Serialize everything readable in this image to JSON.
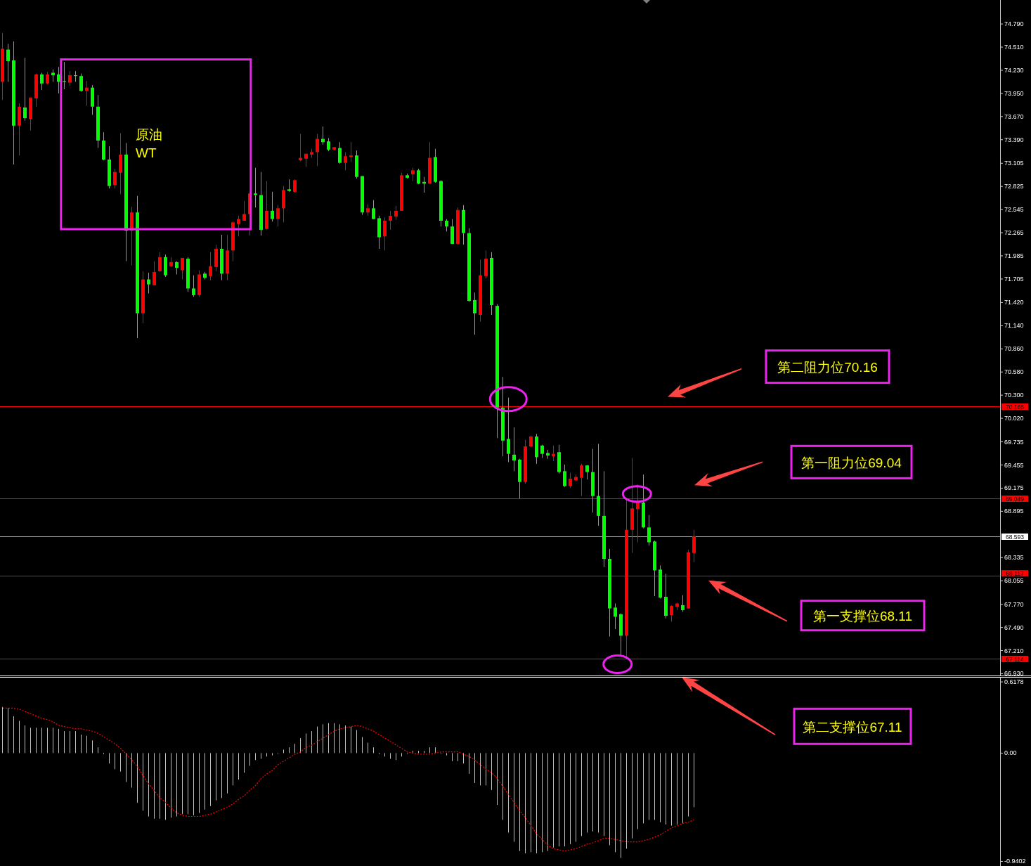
{
  "chart_data": [
    {
      "type": "candlestick",
      "categories": [
        null,
        null,
        null,
        null,
        null,
        null,
        null,
        null,
        null,
        null,
        null,
        null,
        null,
        null,
        null,
        null,
        null,
        null,
        null,
        null,
        null,
        null,
        null,
        null,
        null,
        null,
        null,
        null,
        null,
        null,
        null,
        null,
        null,
        null,
        null,
        null,
        null,
        null,
        null,
        null,
        null,
        null,
        null,
        null,
        null,
        null,
        null,
        null,
        null,
        null,
        null,
        null,
        null,
        null,
        null,
        null,
        null,
        null,
        null,
        null,
        null,
        null,
        null,
        null,
        null,
        null,
        null,
        null,
        null,
        null,
        null,
        null,
        null,
        null,
        null,
        null,
        null,
        null,
        null,
        null,
        null,
        null,
        null,
        null,
        null,
        null,
        null,
        null,
        null,
        null,
        null,
        null,
        null,
        null,
        null,
        null,
        null,
        null,
        null,
        null,
        null,
        null,
        null,
        null,
        null,
        null,
        null,
        null,
        null,
        null,
        null,
        null,
        null,
        null,
        null,
        null,
        null,
        null,
        null,
        null,
        null,
        null,
        null,
        null,
        null,
        null,
        null,
        null,
        null,
        null,
        null,
        null,
        null,
        null,
        null,
        null,
        null,
        null,
        null,
        null,
        null,
        null,
        null,
        null,
        null,
        null,
        null,
        null,
        null,
        null,
        null,
        null,
        null,
        null,
        null,
        null,
        null,
        null,
        null,
        null,
        null,
        null,
        null,
        null,
        null,
        null,
        null,
        null,
        null,
        null,
        null,
        null,
        null,
        null,
        null,
        null,
        null,
        null
      ],
      "ohlc": [
        [
          74.09,
          74.68,
          73.87,
          74.49
        ],
        [
          74.48,
          74.55,
          74.09,
          74.34
        ],
        [
          74.35,
          74.58,
          73.09,
          73.56
        ],
        [
          73.56,
          73.83,
          73.2,
          73.79
        ],
        [
          73.78,
          74.38,
          73.62,
          73.65
        ],
        [
          73.64,
          73.9,
          73.5,
          73.9
        ],
        [
          73.89,
          74.19,
          73.79,
          74.18
        ],
        [
          74.18,
          74.2,
          73.99,
          74.07
        ],
        [
          74.07,
          74.21,
          74.06,
          74.18
        ],
        [
          74.2,
          74.24,
          74.09,
          74.17
        ],
        [
          74.18,
          74.27,
          73.95,
          74.09
        ],
        [
          74.1,
          74.33,
          74.0,
          74.09
        ],
        [
          74.08,
          74.22,
          74.04,
          74.17
        ],
        [
          74.17,
          74.22,
          74.09,
          74.16
        ],
        [
          74.16,
          74.19,
          73.97,
          73.98
        ],
        [
          73.98,
          74.1,
          73.8,
          74.02
        ],
        [
          74.02,
          74.05,
          73.69,
          73.79
        ],
        [
          73.79,
          73.93,
          73.29,
          73.38
        ],
        [
          73.38,
          73.48,
          73.14,
          73.15
        ],
        [
          73.15,
          73.31,
          72.8,
          72.83
        ],
        [
          72.84,
          73.04,
          72.8,
          73.0
        ],
        [
          72.99,
          73.47,
          72.73,
          73.21
        ],
        [
          73.21,
          73.35,
          71.92,
          72.29
        ],
        [
          72.29,
          72.58,
          71.87,
          72.51
        ],
        [
          72.51,
          72.71,
          70.99,
          71.29
        ],
        [
          71.29,
          71.8,
          71.17,
          71.7
        ],
        [
          71.7,
          71.78,
          71.53,
          71.64
        ],
        [
          71.63,
          71.92,
          71.63,
          71.79
        ],
        [
          71.8,
          72.03,
          71.79,
          71.97
        ],
        [
          71.97,
          72.0,
          71.73,
          71.75
        ],
        [
          71.86,
          71.97,
          71.85,
          71.91
        ],
        [
          71.91,
          71.92,
          71.76,
          71.84
        ],
        [
          71.81,
          71.96,
          71.7,
          71.96
        ],
        [
          71.95,
          71.97,
          71.55,
          71.59
        ],
        [
          71.59,
          71.75,
          71.49,
          71.51
        ],
        [
          71.51,
          71.81,
          71.49,
          71.76
        ],
        [
          71.77,
          71.79,
          71.7,
          71.72
        ],
        [
          71.74,
          72.03,
          71.69,
          71.86
        ],
        [
          71.85,
          72.12,
          71.8,
          72.07
        ],
        [
          72.07,
          72.24,
          71.69,
          71.77
        ],
        [
          71.77,
          72.24,
          71.69,
          72.05
        ],
        [
          72.05,
          72.4,
          71.92,
          72.39
        ],
        [
          72.37,
          72.47,
          72.22,
          72.43
        ],
        [
          72.41,
          72.65,
          72.41,
          72.49
        ],
        [
          72.49,
          72.76,
          72.23,
          72.74
        ],
        [
          72.74,
          73.05,
          72.57,
          72.72
        ],
        [
          72.72,
          73.0,
          72.23,
          72.3
        ],
        [
          72.31,
          72.89,
          72.3,
          72.53
        ],
        [
          72.53,
          72.76,
          72.4,
          72.43
        ],
        [
          72.43,
          72.6,
          72.34,
          72.56
        ],
        [
          72.56,
          72.83,
          72.39,
          72.78
        ],
        [
          72.79,
          72.91,
          72.76,
          72.77
        ],
        [
          72.76,
          72.91,
          72.75,
          72.9
        ],
        [
          73.14,
          73.46,
          73.13,
          73.17
        ],
        [
          73.16,
          73.22,
          73.06,
          73.22
        ],
        [
          73.21,
          73.28,
          73.17,
          73.24
        ],
        [
          73.24,
          73.46,
          73.07,
          73.4
        ],
        [
          73.4,
          73.55,
          73.33,
          73.36
        ],
        [
          73.37,
          73.41,
          73.25,
          73.27
        ],
        [
          73.27,
          73.3,
          73.26,
          73.3
        ],
        [
          73.29,
          73.36,
          73.1,
          73.11
        ],
        [
          73.11,
          73.24,
          73.02,
          73.19
        ],
        [
          73.18,
          73.36,
          73.12,
          73.2
        ],
        [
          73.2,
          73.26,
          72.92,
          72.94
        ],
        [
          72.95,
          72.95,
          72.48,
          72.51
        ],
        [
          72.51,
          72.61,
          72.47,
          72.56
        ],
        [
          72.56,
          72.66,
          72.43,
          72.43
        ],
        [
          72.44,
          72.47,
          72.07,
          72.21
        ],
        [
          72.22,
          72.45,
          72.05,
          72.41
        ],
        [
          72.41,
          72.53,
          72.3,
          72.47
        ],
        [
          72.46,
          72.59,
          72.42,
          72.53
        ],
        [
          72.53,
          72.99,
          72.53,
          72.96
        ],
        [
          72.96,
          72.98,
          72.92,
          72.93
        ],
        [
          72.97,
          73.05,
          72.89,
          73.02
        ],
        [
          73.02,
          73.04,
          72.85,
          72.86
        ],
        [
          72.88,
          72.94,
          72.75,
          72.86
        ],
        [
          72.86,
          73.36,
          72.86,
          73.17
        ],
        [
          73.18,
          73.28,
          72.87,
          72.88
        ],
        [
          72.89,
          72.9,
          72.34,
          72.41
        ],
        [
          72.41,
          72.43,
          72.28,
          72.34
        ],
        [
          72.34,
          72.43,
          72.13,
          72.13
        ],
        [
          72.13,
          72.57,
          72.13,
          72.54
        ],
        [
          72.54,
          72.6,
          72.12,
          72.26
        ],
        [
          72.26,
          72.32,
          71.43,
          71.44
        ],
        [
          71.45,
          71.54,
          71.03,
          71.29
        ],
        [
          71.27,
          71.94,
          71.19,
          71.75
        ],
        [
          71.74,
          72.05,
          71.71,
          71.95
        ],
        [
          71.96,
          72.03,
          71.27,
          71.39
        ],
        [
          71.38,
          71.4,
          69.78,
          70.15
        ],
        [
          70.15,
          70.52,
          69.56,
          69.75
        ],
        [
          69.77,
          70.27,
          69.49,
          69.59
        ],
        [
          69.58,
          69.91,
          69.38,
          69.51
        ],
        [
          69.52,
          69.53,
          69.05,
          69.25
        ],
        [
          69.25,
          69.76,
          69.23,
          69.68
        ],
        [
          69.68,
          69.81,
          69.67,
          69.8
        ],
        [
          69.8,
          69.83,
          69.47,
          69.55
        ],
        [
          69.69,
          69.7,
          69.54,
          69.59
        ],
        [
          69.6,
          69.64,
          69.53,
          69.57
        ],
        [
          69.56,
          69.69,
          69.5,
          69.59
        ],
        [
          69.61,
          69.7,
          69.35,
          69.37
        ],
        [
          69.38,
          69.46,
          69.19,
          69.2
        ],
        [
          69.2,
          69.36,
          69.18,
          69.29
        ],
        [
          69.27,
          69.34,
          69.26,
          69.31
        ],
        [
          69.3,
          69.47,
          69.08,
          69.45
        ],
        [
          69.45,
          69.45,
          69.28,
          69.37
        ],
        [
          69.37,
          69.65,
          68.88,
          69.08
        ],
        [
          69.08,
          69.71,
          68.72,
          68.84
        ],
        [
          68.84,
          69.38,
          68.22,
          68.32
        ],
        [
          68.32,
          68.44,
          67.38,
          67.72
        ],
        [
          67.73,
          67.78,
          67.47,
          67.62
        ],
        [
          67.65,
          67.66,
          67.14,
          67.39
        ],
        [
          67.39,
          69.05,
          67.11,
          68.67
        ],
        [
          68.67,
          69.54,
          68.39,
          68.93
        ],
        [
          68.92,
          69.22,
          68.52,
          69.0
        ],
        [
          69.0,
          69.34,
          68.69,
          68.7
        ],
        [
          68.7,
          68.85,
          68.48,
          68.52
        ],
        [
          68.53,
          68.54,
          67.87,
          68.18
        ],
        [
          68.19,
          68.24,
          67.84,
          67.85
        ],
        [
          67.86,
          68.14,
          67.6,
          67.63
        ],
        [
          67.64,
          67.76,
          67.56,
          67.75
        ],
        [
          67.74,
          67.79,
          67.7,
          67.78
        ],
        [
          67.76,
          67.88,
          67.68,
          67.7
        ],
        [
          67.72,
          68.43,
          67.72,
          68.4
        ],
        [
          68.39,
          68.67,
          68.28,
          68.593
        ],
        null,
        null,
        null,
        null,
        null,
        null,
        null,
        null,
        null,
        null,
        null,
        null,
        null,
        null,
        null,
        null,
        null,
        null,
        null,
        null,
        null,
        null,
        null,
        null,
        null,
        null,
        null,
        null,
        null,
        null,
        null,
        null,
        null,
        null,
        null,
        null,
        null,
        null,
        null,
        null,
        null,
        null,
        null,
        null,
        null,
        null,
        null,
        null,
        null,
        null,
        null,
        null,
        null,
        null
      ],
      "colors": [
        "#ff0000",
        "#00ff00",
        "#00ff00",
        "#ff0000",
        "#00ff00",
        "#ff0000",
        "#ff0000",
        "#00ff00",
        "#ff0000",
        "#00ff00",
        "#00ff00",
        "#00ff00",
        "#ff0000",
        "#00ff00",
        "#00ff00",
        "#ff0000",
        "#00ff00",
        "#00ff00",
        "#00ff00",
        "#00ff00",
        "#ff0000",
        "#ff0000",
        "#00ff00",
        "#ff0000",
        "#00ff00",
        "#ff0000",
        "#00ff00",
        "#ff0000",
        "#ff0000",
        "#00ff00",
        "#ff0000",
        "#00ff00",
        "#ff0000",
        "#00ff00",
        "#00ff00",
        "#ff0000",
        "#00ff00",
        "#ff0000",
        "#ff0000",
        "#00ff00",
        "#ff0000",
        "#ff0000",
        "#ff0000",
        "#ff0000",
        "#ff0000",
        "#00ff00",
        "#00ff00",
        "#ff0000",
        "#00ff00",
        "#ff0000",
        "#ff0000",
        "#00ff00",
        "#ff0000",
        "#ff0000",
        "#ff0000",
        "#ff0000",
        "#ff0000",
        "#00ff00",
        "#00ff00",
        "#ff0000",
        "#00ff00",
        "#ff0000",
        "#ff0000",
        "#00ff00",
        "#00ff00",
        "#ff0000",
        "#00ff00",
        "#00ff00",
        "#ff0000",
        "#ff0000",
        "#ff0000",
        "#ff0000",
        "#00ff00",
        "#ff0000",
        "#00ff00",
        "#00ff00",
        "#ff0000",
        "#00ff00",
        "#00ff00",
        "#00ff00",
        "#00ff00",
        "#ff0000",
        "#00ff00",
        "#00ff00",
        "#00ff00",
        "#ff0000",
        "#ff0000",
        "#00ff00",
        "#00ff00",
        "#00ff00",
        "#00ff00",
        "#00ff00",
        "#00ff00",
        "#ff0000",
        "#ff0000",
        "#00ff00",
        "#00ff00",
        "#00ff00",
        "#ff0000",
        "#00ff00",
        "#00ff00",
        "#ff0000",
        "#ff0000",
        "#ff0000",
        "#00ff00",
        "#00ff00",
        "#00ff00",
        "#00ff00",
        "#00ff00",
        "#00ff00",
        "#00ff00",
        "#ff0000",
        "#ff0000",
        "#ff0000",
        "#00ff00",
        "#00ff00",
        "#00ff00",
        "#00ff00",
        "#00ff00",
        "#ff0000",
        "#ff0000",
        "#00ff00",
        "#ff0000",
        "#ff0000",
        null,
        null,
        null,
        null,
        null,
        null,
        null,
        null,
        null,
        null,
        null,
        null,
        null,
        null,
        null,
        null,
        null,
        null,
        null,
        null,
        null,
        null,
        null,
        null,
        null,
        null,
        null,
        null,
        null,
        null,
        null,
        null,
        null,
        null,
        null,
        null,
        null,
        null,
        null,
        null,
        null,
        null,
        null,
        null,
        null,
        null,
        null,
        null,
        null,
        null,
        null,
        null,
        null,
        null
      ],
      "ylim": [
        66.9,
        75.08
      ],
      "yticks": [
        {
          "value": 74.79,
          "label": "74.790"
        },
        {
          "value": 74.51,
          "label": "74.510"
        },
        {
          "value": 74.23,
          "label": "74.230"
        },
        {
          "value": 73.95,
          "label": "73.950"
        },
        {
          "value": 73.67,
          "label": "73.670"
        },
        {
          "value": 73.39,
          "label": "73.390"
        },
        73.105,
        72.825,
        72.545,
        72.265,
        71.985,
        71.705,
        {
          "value": 71.42,
          "label": "71.420"
        },
        {
          "value": 71.14,
          "label": "71.140"
        },
        {
          "value": 70.86,
          "label": "70.860"
        },
        {
          "value": 70.58,
          "label": "70.580"
        },
        {
          "value": 70.3,
          "label": "70.300"
        },
        {
          "value": 70.02,
          "label": "70.020"
        },
        69.735,
        69.455,
        69.175,
        68.895,
        68.335,
        68.055,
        {
          "value": 67.77,
          "label": "67.770"
        },
        {
          "value": 67.49,
          "label": "67.490"
        },
        {
          "value": 67.21,
          "label": "67.210"
        },
        {
          "value": 66.93,
          "label": "66.930"
        }
      ],
      "tick_labels": "y",
      "ref_lines": [
        {
          "axis": "y",
          "value": 70.165,
          "label": "70.165",
          "color": "#ff0000"
        },
        {
          "axis": "y",
          "value": 69.049,
          "label": "69.049",
          "color": "#ff0000"
        },
        {
          "axis": "y",
          "value": 68.593,
          "label": "68.593",
          "color": "#a0a0a0"
        },
        {
          "axis": "y",
          "value": 68.117,
          "label": "68.117",
          "color": "#ff0000"
        },
        {
          "axis": "y",
          "value": 67.114,
          "label": "67.114",
          "color": "#ff0000"
        }
      ],
      "annotations": [
        "原油",
        "WT",
        {
          "text": "第二阻力位70.16",
          "y": 70.16
        },
        {
          "text": "第一阻力位69.04",
          "y": 69.04
        },
        {
          "text": "第一支撑位68.11",
          "y": 68.11
        },
        "第二支撑位67.11"
      ]
    },
    {
      "type": "bar",
      "categories": [
        null,
        null,
        null,
        null,
        null,
        null,
        null,
        null,
        null,
        null,
        null,
        null,
        null,
        null,
        null,
        null,
        null,
        null,
        null,
        null,
        null,
        null,
        null,
        null,
        null,
        null,
        null,
        null,
        null,
        null,
        null,
        null,
        null,
        null,
        null,
        null,
        null,
        null,
        null,
        null,
        null,
        null,
        null,
        null,
        null,
        null,
        null,
        null,
        null,
        null,
        null,
        null,
        null,
        null,
        null,
        null,
        null,
        null,
        null,
        null,
        null,
        null,
        null,
        null,
        null,
        null,
        null,
        null,
        null,
        null,
        null,
        null,
        null,
        null,
        null,
        null,
        null,
        null,
        null,
        null,
        null,
        null,
        null,
        null,
        null,
        null,
        null,
        null,
        null,
        null,
        null,
        null,
        null,
        null,
        null,
        null,
        null,
        null,
        null,
        null,
        null,
        null,
        null,
        null,
        null,
        null,
        null,
        null,
        null,
        null,
        null,
        null,
        null,
        null,
        null,
        null,
        null,
        null,
        null,
        null,
        null,
        null,
        null,
        null,
        null,
        null,
        null,
        null,
        null,
        null,
        null,
        null,
        null,
        null,
        null,
        null,
        null,
        null,
        null,
        null,
        null,
        null,
        null,
        null,
        null,
        null,
        null,
        null,
        null,
        null,
        null,
        null,
        null,
        null,
        null,
        null,
        null,
        null,
        null,
        null,
        null,
        null,
        null,
        null,
        null,
        null,
        null,
        null,
        null,
        null,
        null,
        null,
        null,
        null,
        null,
        null,
        null,
        null
      ],
      "series": [
        {
          "type": "bar",
          "color": "#c0c0c0",
          "values": [
            0.4,
            0.39,
            0.32,
            0.28,
            0.24,
            0.22,
            0.22,
            0.22,
            0.22,
            0.22,
            0.21,
            0.19,
            0.19,
            0.19,
            0.16,
            0.15,
            0.11,
            0.05,
            -0.01,
            -0.09,
            -0.14,
            -0.16,
            -0.25,
            -0.3,
            -0.43,
            -0.5,
            -0.55,
            -0.57,
            -0.57,
            -0.58,
            -0.56,
            -0.55,
            -0.53,
            -0.53,
            -0.54,
            -0.52,
            -0.49,
            -0.46,
            -0.41,
            -0.39,
            -0.35,
            -0.28,
            -0.23,
            -0.17,
            -0.11,
            -0.06,
            -0.05,
            -0.03,
            -0.02,
            0,
            0.03,
            0.05,
            0.08,
            0.13,
            0.17,
            0.19,
            0.23,
            0.25,
            0.26,
            0.26,
            0.25,
            0.24,
            0.23,
            0.2,
            0.14,
            0.09,
            0.05,
            -0.01,
            -0.03,
            -0.05,
            -0.06,
            -0.03,
            0,
            0.02,
            0.02,
            0.02,
            0.05,
            0.05,
            0,
            -0.02,
            -0.07,
            -0.07,
            -0.09,
            -0.18,
            -0.26,
            -0.28,
            -0.28,
            -0.32,
            -0.45,
            -0.58,
            -0.69,
            -0.77,
            -0.85,
            -0.87,
            -0.86,
            -0.87,
            -0.86,
            -0.85,
            -0.82,
            -0.81,
            -0.81,
            -0.79,
            -0.77,
            -0.72,
            -0.69,
            -0.68,
            -0.69,
            -0.72,
            -0.8,
            -0.86,
            -0.91,
            -0.83,
            -0.74,
            -0.66,
            -0.61,
            -0.58,
            -0.58,
            -0.6,
            -0.62,
            -0.63,
            -0.62,
            -0.61,
            -0.55,
            -0.47,
            null,
            null,
            null,
            null,
            null,
            null,
            null,
            null,
            null,
            null,
            null,
            null,
            null,
            null,
            null,
            null,
            null,
            null,
            null,
            null,
            null,
            null,
            null,
            null,
            null,
            null,
            null,
            null,
            null,
            null,
            null,
            null,
            null,
            null,
            null,
            null,
            null,
            null,
            null,
            null,
            null,
            null,
            null,
            null,
            null,
            null,
            null,
            null,
            null,
            null,
            null,
            null,
            null,
            null
          ]
        },
        {
          "type": "line",
          "color": "#ff0000",
          "line_style": "dotted",
          "values": [
            0.39,
            0.39,
            0.39,
            0.38,
            0.36,
            0.34,
            0.32,
            0.3,
            0.29,
            0.27,
            0.24,
            0.23,
            0.22,
            0.21,
            0.21,
            0.2,
            0.19,
            0.17,
            0.14,
            0.11,
            0.08,
            0.04,
            -0.01,
            -0.06,
            -0.12,
            -0.2,
            -0.27,
            -0.33,
            -0.39,
            -0.43,
            -0.48,
            -0.52,
            -0.54,
            -0.55,
            -0.55,
            -0.55,
            -0.54,
            -0.53,
            -0.51,
            -0.49,
            -0.47,
            -0.44,
            -0.4,
            -0.37,
            -0.32,
            -0.28,
            -0.22,
            -0.18,
            -0.15,
            -0.1,
            -0.07,
            -0.04,
            -0.01,
            0.01,
            0.05,
            0.07,
            0.1,
            0.13,
            0.16,
            0.19,
            0.21,
            0.22,
            0.23,
            0.24,
            0.23,
            0.21,
            0.19,
            0.16,
            0.13,
            0.1,
            0.07,
            0.04,
            0.01,
            0,
            -0.01,
            -0.01,
            -0.01,
            0,
            0.01,
            0.01,
            0.01,
            0.01,
            -0.01,
            -0.03,
            -0.06,
            -0.1,
            -0.14,
            -0.17,
            -0.22,
            -0.29,
            -0.36,
            -0.43,
            -0.5,
            -0.56,
            -0.63,
            -0.7,
            -0.75,
            -0.8,
            -0.83,
            -0.84,
            -0.85,
            -0.84,
            -0.83,
            -0.81,
            -0.79,
            -0.78,
            -0.76,
            -0.74,
            -0.74,
            -0.75,
            -0.76,
            -0.77,
            -0.77,
            -0.77,
            -0.76,
            -0.75,
            -0.73,
            -0.71,
            -0.68,
            -0.65,
            -0.63,
            -0.61,
            -0.6,
            -0.58,
            null,
            null,
            null,
            null,
            null,
            null,
            null,
            null,
            null,
            null,
            null,
            null,
            null,
            null,
            null,
            null,
            null,
            null,
            null,
            null,
            null,
            null,
            null,
            null,
            null,
            null,
            null,
            null,
            null,
            null,
            null,
            null,
            null,
            null,
            null,
            null,
            null,
            null,
            null,
            null,
            null,
            null,
            null,
            null,
            null,
            null,
            null,
            null,
            null,
            null,
            null,
            null,
            null,
            null
          ]
        }
      ],
      "ylim": [
        -0.98,
        0.655
      ],
      "yticks": [
        0.6178,
        {
          "value": 0,
          "label": "0.00"
        },
        -0.9402
      ],
      "tick_labels": "y"
    }
  ]
}
